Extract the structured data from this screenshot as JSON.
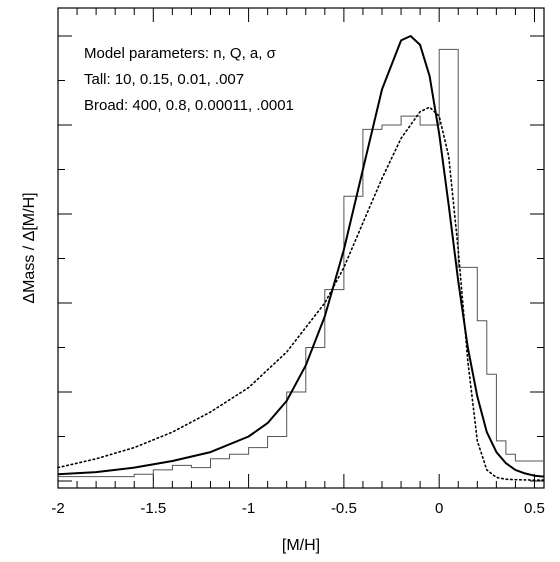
{
  "chart_data": {
    "type": "line",
    "xlabel": "[M/H]",
    "ylabel": "ΔMass / Δ[M/H]",
    "xlim": [
      -2.0,
      0.55
    ],
    "ylim": [
      0,
      1.0
    ],
    "x_ticks": [
      {
        "value": -2.0,
        "label": "-2"
      },
      {
        "value": -1.5,
        "label": "-1.5"
      },
      {
        "value": -1.0,
        "label": "-1"
      },
      {
        "value": -0.5,
        "label": "-0.5"
      },
      {
        "value": 0.0,
        "label": "0"
      },
      {
        "value": 0.5,
        "label": "0.5"
      }
    ],
    "y_ticks_labeled": false,
    "grid": false,
    "annotations": [
      "Model parameters: n, Q, a, σ",
      "Tall: 10, 0.15, 0.01, .007",
      "Broad: 400, 0.8, 0.00011, .0001"
    ],
    "series": [
      {
        "style": "histogram",
        "bin_edges": [
          -2.0,
          -1.6,
          -1.5,
          -1.4,
          -1.3,
          -1.2,
          -1.1,
          -1.0,
          -0.9,
          -0.8,
          -0.7,
          -0.6,
          -0.5,
          -0.4,
          -0.3,
          -0.2,
          -0.1,
          0.0,
          0.1,
          0.2,
          0.25,
          0.3,
          0.35,
          0.4,
          0.55
        ],
        "values": [
          0.01,
          0.015,
          0.025,
          0.035,
          0.03,
          0.05,
          0.06,
          0.075,
          0.1,
          0.2,
          0.3,
          0.43,
          0.64,
          0.79,
          0.8,
          0.82,
          0.8,
          0.97,
          0.48,
          0.36,
          0.24,
          0.09,
          0.06,
          0.045
        ]
      },
      {
        "style": "solid",
        "x": [
          -2.0,
          -1.8,
          -1.6,
          -1.4,
          -1.2,
          -1.0,
          -0.9,
          -0.8,
          -0.7,
          -0.6,
          -0.5,
          -0.4,
          -0.3,
          -0.2,
          -0.15,
          -0.1,
          -0.05,
          0.0,
          0.05,
          0.1,
          0.15,
          0.2,
          0.25,
          0.3,
          0.35,
          0.4,
          0.45,
          0.5,
          0.55
        ],
        "y": [
          0.015,
          0.02,
          0.03,
          0.045,
          0.065,
          0.1,
          0.13,
          0.18,
          0.26,
          0.37,
          0.52,
          0.7,
          0.88,
          0.99,
          1.0,
          0.98,
          0.91,
          0.78,
          0.62,
          0.45,
          0.3,
          0.19,
          0.11,
          0.065,
          0.04,
          0.025,
          0.017,
          0.012,
          0.01
        ]
      },
      {
        "style": "dotted",
        "x": [
          -2.0,
          -1.8,
          -1.6,
          -1.4,
          -1.2,
          -1.0,
          -0.8,
          -0.6,
          -0.5,
          -0.4,
          -0.3,
          -0.2,
          -0.1,
          -0.05,
          0.0,
          0.05,
          0.1,
          0.15,
          0.2,
          0.25,
          0.3,
          0.35,
          0.4,
          0.5,
          0.55
        ],
        "y": [
          0.03,
          0.05,
          0.075,
          0.11,
          0.155,
          0.21,
          0.29,
          0.4,
          0.48,
          0.58,
          0.68,
          0.77,
          0.83,
          0.84,
          0.82,
          0.73,
          0.52,
          0.27,
          0.09,
          0.025,
          0.008,
          0.004,
          0.003,
          0.002,
          0.002
        ]
      }
    ]
  }
}
